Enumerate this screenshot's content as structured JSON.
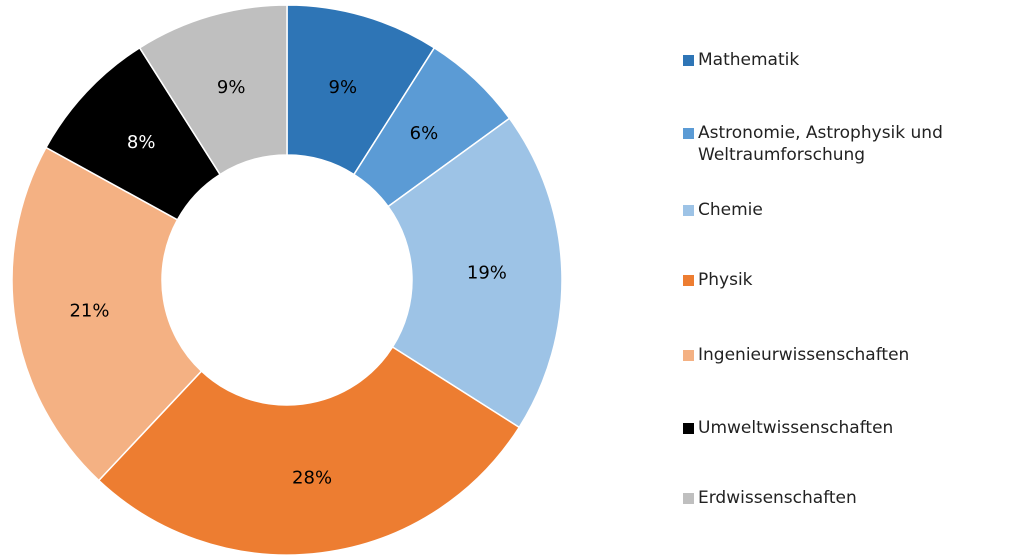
{
  "chart_data": {
    "type": "donut",
    "categories": [
      "Mathematik",
      "Astronomie, Astrophysik und Weltraumforschung",
      "Chemie",
      "Physik",
      "Ingenieurwissenschaften",
      "Umweltwissenschaften",
      "Erdwissenschaften"
    ],
    "values": [
      9,
      6,
      19,
      28,
      21,
      8,
      9
    ],
    "value_labels": [
      "9%",
      "6%",
      "19%",
      "28%",
      "21%",
      "8%",
      "9%"
    ],
    "colors": [
      "#2e75b6",
      "#5b9bd5",
      "#9dc3e6",
      "#ed7d31",
      "#f4b183",
      "#000000",
      "#bfbfbf"
    ],
    "legend": "right"
  }
}
